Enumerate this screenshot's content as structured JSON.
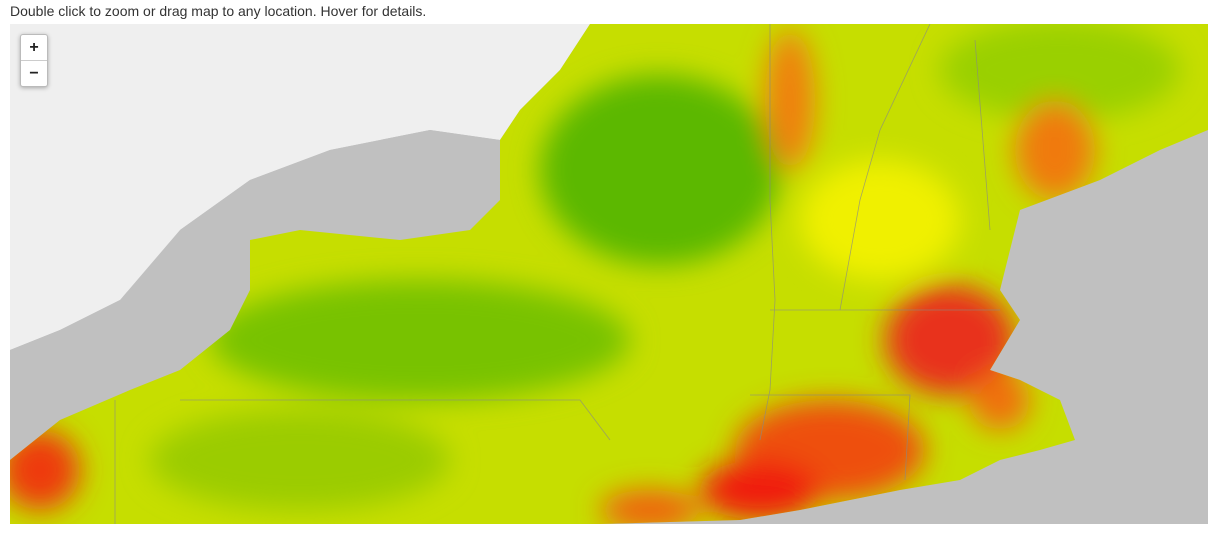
{
  "instruction": "Double click to zoom or drag map to any location. Hover for details.",
  "zoom_controls": {
    "zoom_in": "+",
    "zoom_out": "−"
  }
}
